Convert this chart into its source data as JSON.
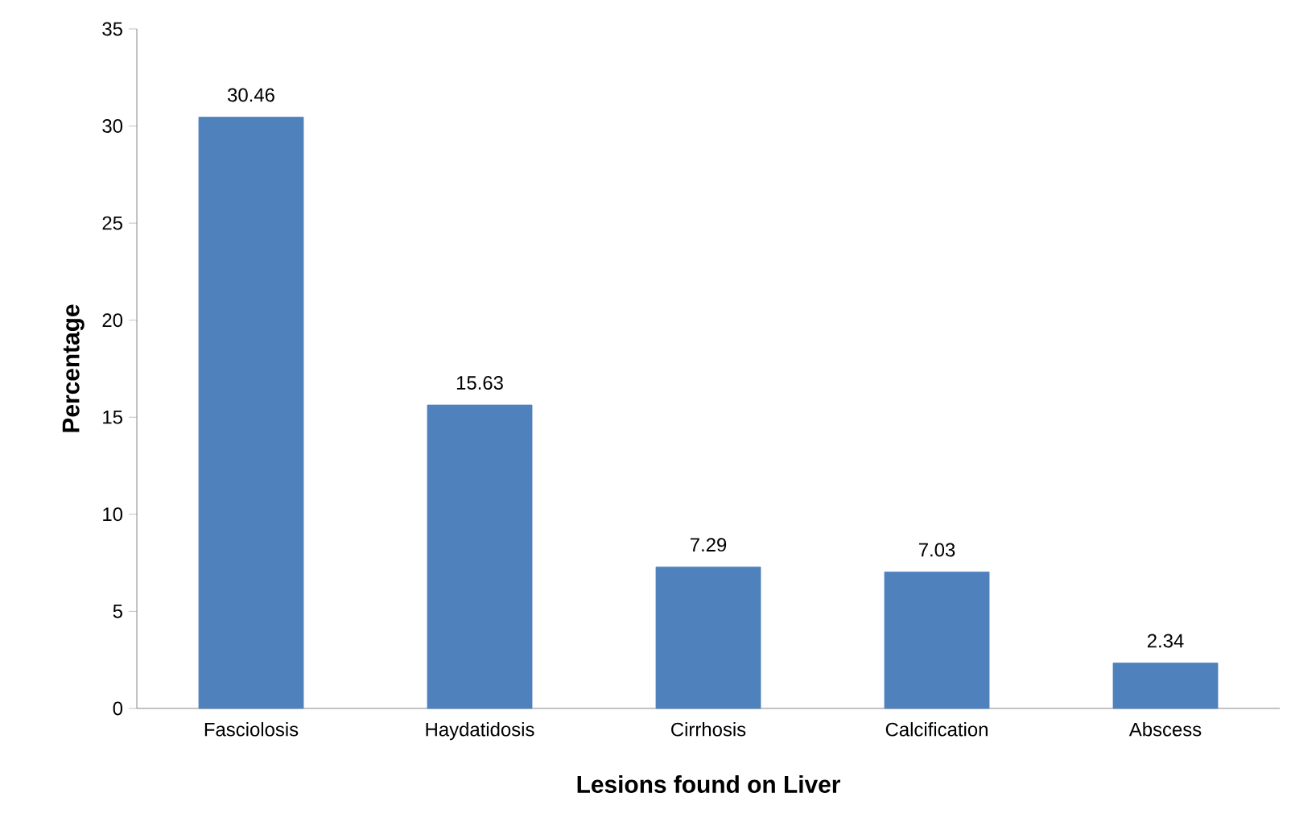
{
  "chart_data": {
    "type": "bar",
    "xlabel": "Lesions found on Liver",
    "ylabel": "Percentage",
    "categories": [
      "Fasciolosis",
      "Haydatidosis",
      "Cirrhosis",
      "Calcification",
      "Abscess"
    ],
    "values": [
      30.46,
      15.63,
      7.29,
      7.03,
      2.34
    ],
    "color": "#4f81bd",
    "ylim": [
      0,
      35
    ],
    "yticks": [
      0,
      5,
      10,
      15,
      20,
      25,
      30,
      35
    ],
    "data_labels": true,
    "grid": false
  }
}
